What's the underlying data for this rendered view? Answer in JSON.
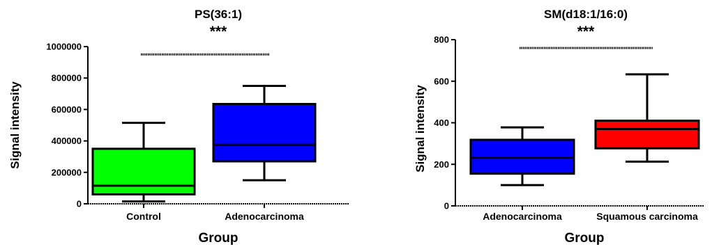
{
  "chart_data": [
    {
      "type": "box",
      "title": "PS(36:1)",
      "significance": "***",
      "xlabel": "Group",
      "ylabel": "Signal intensity",
      "ylim": [
        0,
        1000000
      ],
      "yticks": [
        0,
        200000,
        400000,
        600000,
        800000,
        1000000
      ],
      "ytick_labels": [
        "0",
        "200000",
        "400000",
        "600000",
        "800000",
        "1000000"
      ],
      "grid": false,
      "categories": [
        "Control",
        "Adenocarcinoma"
      ],
      "colors": [
        "#00ff00",
        "#0000ff"
      ],
      "boxes": [
        {
          "min": 15000,
          "q1": 60000,
          "median": 115000,
          "q3": 350000,
          "max": 515000
        },
        {
          "min": 150000,
          "q1": 270000,
          "median": 375000,
          "q3": 635000,
          "max": 750000
        }
      ],
      "significance_bar_y": 950000
    },
    {
      "type": "box",
      "title": "SM(d18:1/16:0)",
      "significance": "***",
      "xlabel": "Group",
      "ylabel": "Signal intensity",
      "ylim": [
        0,
        800
      ],
      "yticks": [
        0,
        200,
        400,
        600,
        800
      ],
      "ytick_labels": [
        "0",
        "200",
        "400",
        "600",
        "800"
      ],
      "grid": false,
      "categories": [
        "Adenocarcinoma",
        "Squamous carcinoma"
      ],
      "colors": [
        "#0000ff",
        "#ff0000"
      ],
      "boxes": [
        {
          "min": 100,
          "q1": 155,
          "median": 232,
          "q3": 318,
          "max": 378
        },
        {
          "min": 213,
          "q1": 277,
          "median": 370,
          "q3": 410,
          "max": 633
        }
      ],
      "significance_bar_y": 760
    }
  ]
}
